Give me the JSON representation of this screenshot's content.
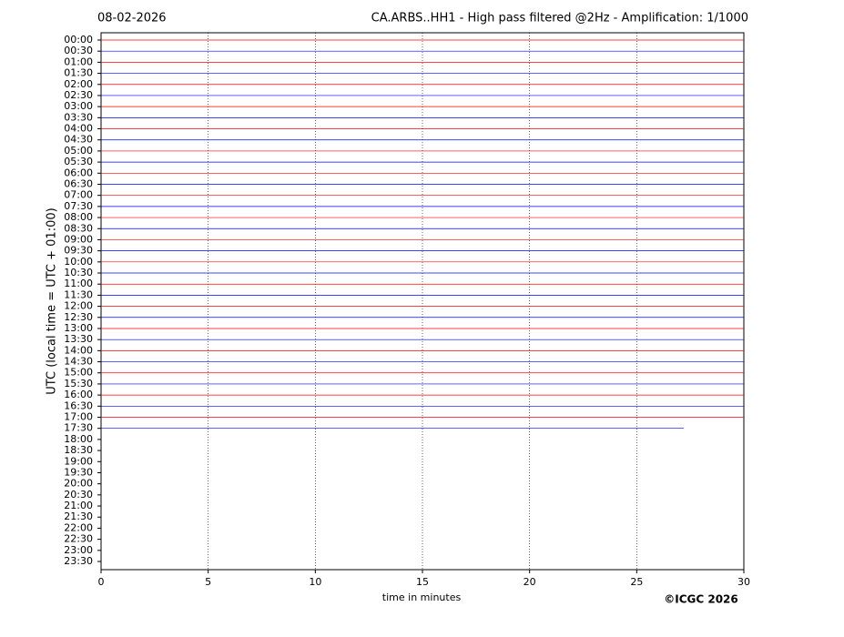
{
  "chart_data": {
    "type": "helicorder",
    "date": "08-02-2026",
    "title": "CA.ARBS..HH1 - High pass filtered @2Hz - Amplification: 1/1000",
    "ylabel": "UTC (local time = UTC + 01:00)",
    "xlabel": "time in minutes",
    "copyright": "©ICGC 2026",
    "categories": [
      "00:00",
      "00:30",
      "01:00",
      "01:30",
      "02:00",
      "02:30",
      "03:00",
      "03:30",
      "04:00",
      "04:30",
      "05:00",
      "05:30",
      "06:00",
      "06:30",
      "07:00",
      "07:30",
      "08:00",
      "08:30",
      "09:00",
      "09:30",
      "10:00",
      "10:30",
      "11:00",
      "11:30",
      "12:00",
      "12:30",
      "13:00",
      "13:30",
      "14:00",
      "14:30",
      "15:00",
      "15:30",
      "16:00",
      "16:30",
      "17:00",
      "17:30",
      "18:00",
      "18:30",
      "19:00",
      "19:30",
      "20:00",
      "20:30",
      "21:00",
      "21:30",
      "22:00",
      "22:30",
      "23:00",
      "23:30"
    ],
    "values": [
      30,
      30,
      30,
      30,
      30,
      30,
      30,
      30,
      30,
      30,
      30,
      30,
      30,
      30,
      30,
      30,
      30,
      30,
      30,
      30,
      30,
      30,
      30,
      30,
      30,
      30,
      30,
      30,
      30,
      30,
      30,
      30,
      30,
      30,
      30,
      27.2,
      null,
      null,
      null,
      null,
      null,
      null,
      null,
      null,
      null,
      null,
      null,
      null
    ],
    "colors": [
      "#ff0000",
      "#0000ff"
    ],
    "xlim": [
      0,
      30
    ],
    "xticks": [
      0,
      5,
      10,
      15,
      20,
      25,
      30
    ],
    "grid": true
  }
}
